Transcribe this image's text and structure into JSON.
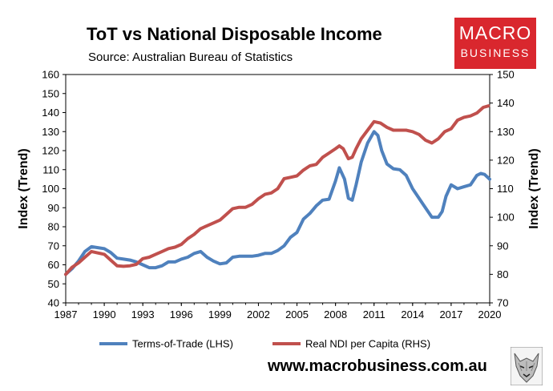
{
  "header": {
    "title": "ToT vs National Disposable Income",
    "subtitle": "Source: Australian Bureau of Statistics"
  },
  "logo": {
    "line1": "MACRO",
    "line2": "BUSINESS",
    "color": "#d9272e"
  },
  "footer": {
    "url": "www.macrobusiness.com.au"
  },
  "chart_data": {
    "type": "line",
    "title": "ToT vs National Disposable Income",
    "subtitle": "Source: Australian Bureau of Statistics",
    "xlabel": "",
    "ylabel_left": "Index (Trend)",
    "ylabel_right": "Index (Trend)",
    "xlim": [
      1987,
      2020
    ],
    "ylim_left": [
      40,
      160
    ],
    "ylim_right": [
      70,
      150
    ],
    "x_ticks": [
      1987,
      1990,
      1993,
      1996,
      1999,
      2002,
      2005,
      2008,
      2011,
      2014,
      2017,
      2020
    ],
    "y_ticks_left": [
      40,
      50,
      60,
      70,
      80,
      90,
      100,
      110,
      120,
      130,
      140,
      150,
      160
    ],
    "y_ticks_right": [
      70,
      80,
      90,
      100,
      110,
      120,
      130,
      140,
      150
    ],
    "grid": false,
    "legend_position": "bottom",
    "series": [
      {
        "name": "Terms-of-Trade (LHS)",
        "axis": "left",
        "color": "#4f81bd",
        "x": [
          1987.0,
          1987.5,
          1988.0,
          1988.5,
          1989.0,
          1989.5,
          1990.0,
          1990.5,
          1991.0,
          1991.5,
          1992.0,
          1992.5,
          1993.0,
          1993.5,
          1994.0,
          1994.5,
          1995.0,
          1995.5,
          1996.0,
          1996.5,
          1997.0,
          1997.5,
          1998.0,
          1998.5,
          1999.0,
          1999.5,
          2000.0,
          2000.5,
          2001.0,
          2001.5,
          2002.0,
          2002.5,
          2003.0,
          2003.5,
          2004.0,
          2004.5,
          2005.0,
          2005.5,
          2006.0,
          2006.5,
          2007.0,
          2007.5,
          2008.0,
          2008.3,
          2008.7,
          2009.0,
          2009.3,
          2009.6,
          2010.0,
          2010.5,
          2011.0,
          2011.3,
          2011.6,
          2012.0,
          2012.5,
          2013.0,
          2013.5,
          2014.0,
          2014.5,
          2015.0,
          2015.5,
          2016.0,
          2016.3,
          2016.6,
          2017.0,
          2017.5,
          2018.0,
          2018.5,
          2019.0,
          2019.3,
          2019.6,
          2020.0
        ],
        "values": [
          55,
          58,
          62,
          67,
          69.5,
          69,
          68.5,
          66.5,
          63.5,
          63,
          62.5,
          61.5,
          60,
          58.5,
          58.5,
          59.5,
          61.5,
          61.5,
          63,
          64,
          66,
          67,
          64,
          62,
          60.5,
          61,
          64,
          64.5,
          64.5,
          64.5,
          65,
          66,
          66,
          67.5,
          70,
          74.5,
          77,
          84,
          87,
          91,
          94,
          94.5,
          104,
          111,
          105,
          95,
          94,
          102,
          114,
          124,
          130,
          128,
          120,
          113,
          110.5,
          110,
          107,
          100,
          95,
          90,
          85,
          85,
          88,
          96,
          102,
          100,
          101,
          102,
          107,
          108,
          107.5,
          105
        ]
      },
      {
        "name": "Real NDI per Capita (RHS)",
        "axis": "right",
        "color": "#c0504d",
        "x": [
          1987.0,
          1987.5,
          1988.0,
          1988.5,
          1989.0,
          1989.5,
          1990.0,
          1990.5,
          1991.0,
          1991.5,
          1992.0,
          1992.5,
          1993.0,
          1993.5,
          1994.0,
          1994.5,
          1995.0,
          1995.5,
          1996.0,
          1996.5,
          1997.0,
          1997.5,
          1998.0,
          1998.5,
          1999.0,
          1999.5,
          2000.0,
          2000.5,
          2001.0,
          2001.5,
          2002.0,
          2002.5,
          2003.0,
          2003.5,
          2004.0,
          2004.5,
          2005.0,
          2005.5,
          2006.0,
          2006.5,
          2007.0,
          2007.5,
          2008.0,
          2008.3,
          2008.6,
          2009.0,
          2009.3,
          2009.6,
          2010.0,
          2010.5,
          2011.0,
          2011.5,
          2012.0,
          2012.5,
          2013.0,
          2013.5,
          2014.0,
          2014.5,
          2015.0,
          2015.5,
          2016.0,
          2016.5,
          2017.0,
          2017.5,
          2018.0,
          2018.5,
          2019.0,
          2019.5,
          2019.9
        ],
        "values": [
          80,
          82.5,
          84,
          86,
          88,
          87.5,
          87,
          85,
          83,
          82.8,
          83,
          83.5,
          85.5,
          86,
          87,
          88,
          89,
          89.5,
          90.5,
          92.5,
          94,
          96,
          97,
          98,
          99,
          101,
          103,
          103.5,
          103.5,
          104.5,
          106.5,
          108,
          108.5,
          110,
          113.5,
          114,
          114.5,
          116.5,
          118,
          118.5,
          121,
          122.5,
          124,
          125,
          124,
          120.5,
          121,
          124,
          127.5,
          130.5,
          133.5,
          133,
          131.5,
          130.5,
          130.5,
          130.5,
          130,
          129,
          127,
          126,
          127.5,
          130,
          131,
          134,
          135,
          135.5,
          136.5,
          138.5,
          139
        ]
      }
    ]
  }
}
